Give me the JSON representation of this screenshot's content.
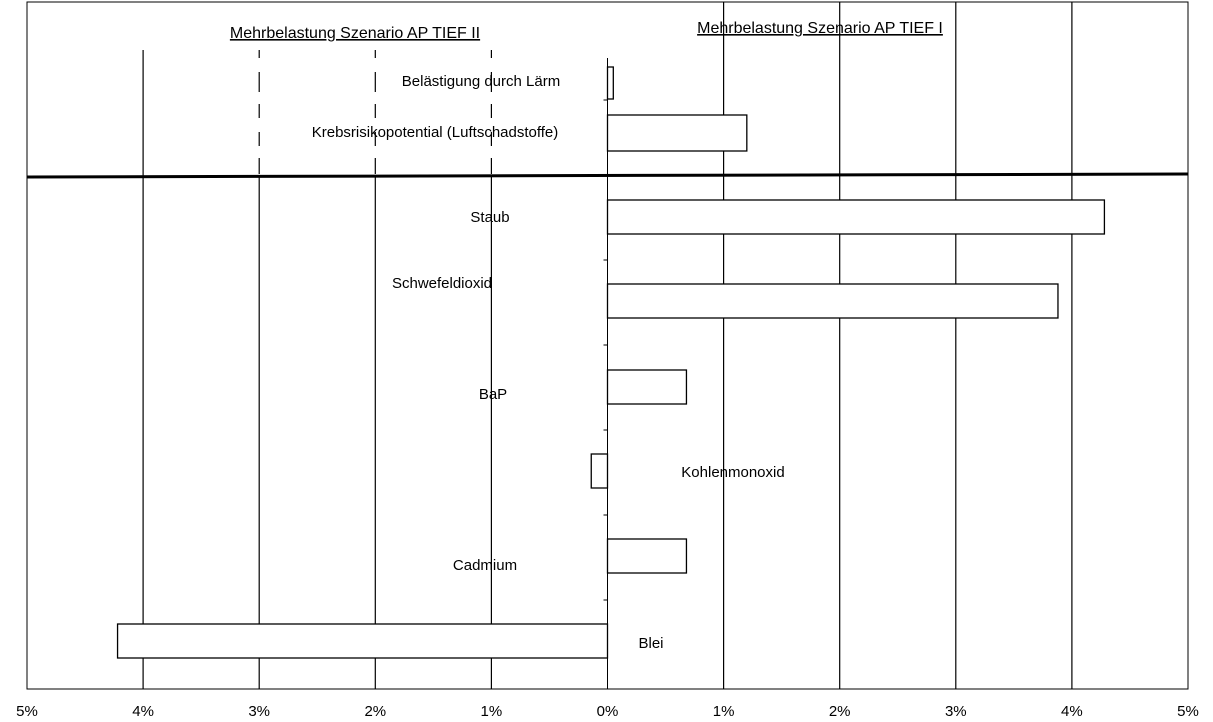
{
  "chart_data": {
    "type": "bar",
    "orientation": "horizontal",
    "titles": {
      "left": "Mehrbelastung Szenario AP TIEF II",
      "right": "Mehrbelastung Szenario AP TIEF I"
    },
    "xlim": [
      -5,
      5
    ],
    "x_tick_labels": [
      "5%",
      "4%",
      "3%",
      "2%",
      "1%",
      "0%",
      "1%",
      "2%",
      "3%",
      "4%",
      "5%"
    ],
    "grid": true,
    "categories": [
      "Belästigung durch Lärm",
      "Krebsrisikopotential (Luftschadstoffe)",
      "Staub",
      "Schwefeldioxid",
      "BaP",
      "Kohlenmonoxid",
      "Cadmium",
      "Blei"
    ],
    "values": [
      0.05,
      1.2,
      4.28,
      3.88,
      0.68,
      -0.14,
      0.68,
      -4.22
    ],
    "colors": {
      "bar_fill": "#ffffff",
      "bar_stroke": "#000000",
      "grid": "#000000"
    }
  }
}
